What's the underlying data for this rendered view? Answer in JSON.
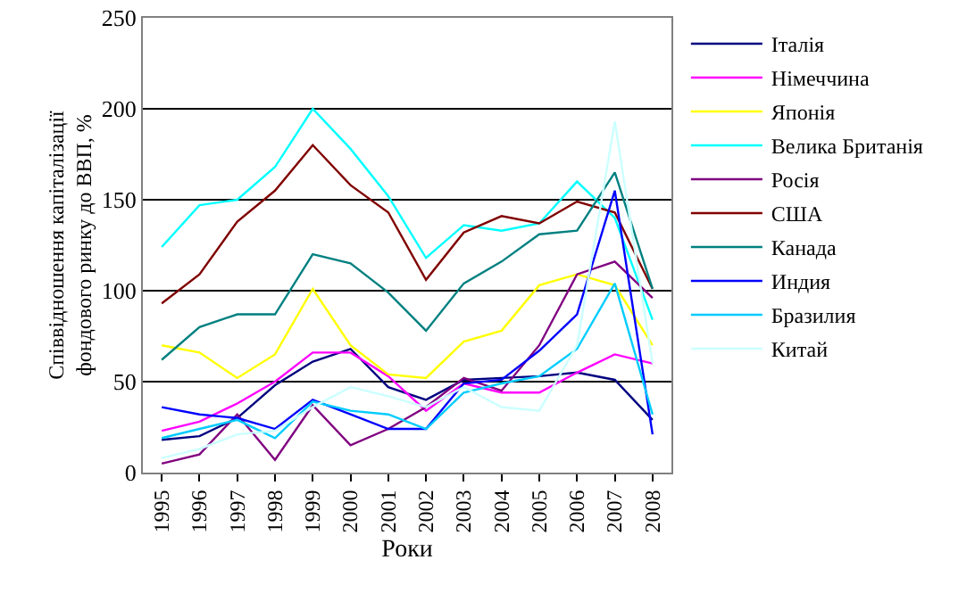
{
  "chart_data": {
    "type": "line",
    "xlabel": "Роки",
    "ylabel": "Співвідношення капіталізації фондового ринку до ВВП, %",
    "categories": [
      "1995",
      "1996",
      "1997",
      "1998",
      "1999",
      "2000",
      "2001",
      "2002",
      "2003",
      "2004",
      "2005",
      "2006",
      "2007",
      "2008"
    ],
    "ylim": [
      0,
      250
    ],
    "yticks": [
      0,
      50,
      100,
      150,
      200,
      250
    ],
    "grid": "y",
    "legend": "right",
    "marker": "none",
    "line_style": "solid",
    "series": [
      {
        "name": "Італія",
        "color": "#000080",
        "values": [
          18,
          20,
          30,
          48,
          61,
          68,
          47,
          40,
          51,
          52,
          53,
          55,
          51,
          29
        ]
      },
      {
        "name": "Німеччина",
        "color": "#ff00ff",
        "values": [
          23,
          28,
          38,
          50,
          66,
          66,
          53,
          34,
          49,
          44,
          44,
          55,
          65,
          60
        ]
      },
      {
        "name": "Японія",
        "color": "#ffff00",
        "values": [
          70,
          66,
          52,
          65,
          101,
          70,
          54,
          52,
          72,
          78,
          103,
          109,
          103,
          70
        ]
      },
      {
        "name": "Велика Британія",
        "color": "#00ffff",
        "values": [
          124,
          147,
          150,
          168,
          200,
          178,
          152,
          118,
          136,
          133,
          137,
          160,
          140,
          84
        ]
      },
      {
        "name": "Росія",
        "color": "#800080",
        "values": [
          5,
          10,
          32,
          7,
          37,
          15,
          24,
          36,
          52,
          45,
          70,
          109,
          116,
          96
        ]
      },
      {
        "name": "США",
        "color": "#800000",
        "values": [
          93,
          109,
          138,
          155,
          180,
          158,
          143,
          106,
          132,
          141,
          137,
          149,
          143,
          101
        ]
      },
      {
        "name": "Канада",
        "color": "#008080",
        "values": [
          62,
          80,
          87,
          87,
          120,
          115,
          99,
          78,
          104,
          116,
          131,
          133,
          165,
          101
        ]
      },
      {
        "name": "Индия",
        "color": "#0000ff",
        "values": [
          36,
          32,
          30,
          24,
          40,
          32,
          24,
          24,
          49,
          51,
          67,
          87,
          155,
          21
        ]
      },
      {
        "name": "Бразилия",
        "color": "#00ccff",
        "values": [
          19,
          24,
          29,
          19,
          39,
          34,
          32,
          24,
          44,
          49,
          53,
          68,
          104,
          32
        ]
      },
      {
        "name": "Китай",
        "color": "#ccffff",
        "values": [
          8,
          13,
          21,
          23,
          36,
          47,
          42,
          36,
          47,
          36,
          34,
          70,
          193,
          60
        ]
      }
    ]
  }
}
